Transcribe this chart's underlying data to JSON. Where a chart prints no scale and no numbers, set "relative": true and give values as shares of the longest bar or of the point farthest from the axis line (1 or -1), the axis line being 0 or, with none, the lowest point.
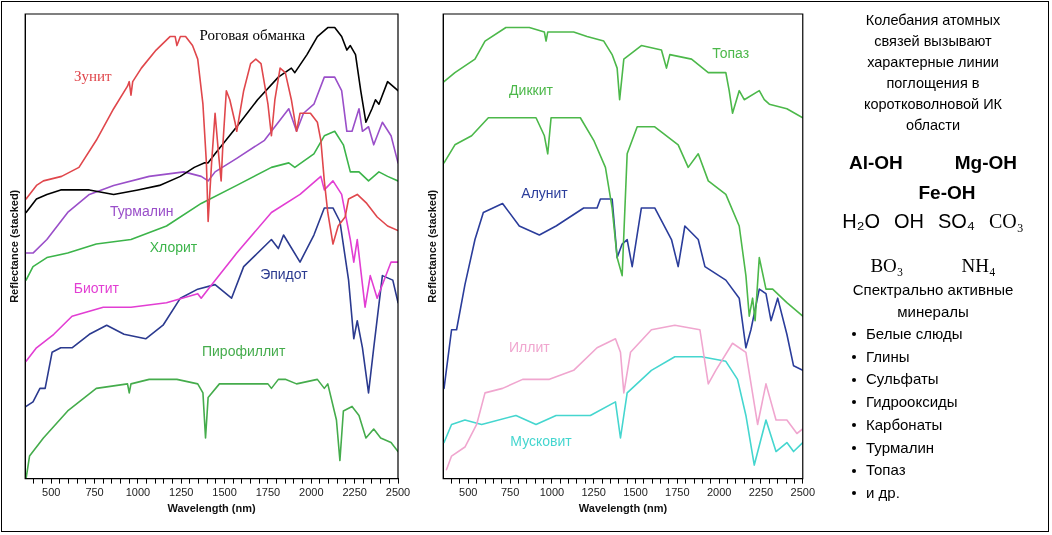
{
  "chart_data": [
    {
      "type": "line",
      "xlabel": "Wavelength (nm)",
      "ylabel": "Reflectance (stacked)",
      "relative": true,
      "marker": "none",
      "xlim": [
        350,
        2500
      ],
      "xticks": [
        {
          "value": 400,
          "label": null
        },
        {
          "value": 450,
          "label": null
        },
        500,
        {
          "value": 550,
          "label": null
        },
        {
          "value": 600,
          "label": null
        },
        {
          "value": 650,
          "label": null
        },
        {
          "value": 700,
          "label": null
        },
        750,
        {
          "value": 800,
          "label": null
        },
        {
          "value": 850,
          "label": null
        },
        {
          "value": 900,
          "label": null
        },
        {
          "value": 950,
          "label": null
        },
        1000,
        {
          "value": 1050,
          "label": null
        },
        {
          "value": 1100,
          "label": null
        },
        {
          "value": 1150,
          "label": null
        },
        {
          "value": 1200,
          "label": null
        },
        1250,
        {
          "value": 1300,
          "label": null
        },
        {
          "value": 1350,
          "label": null
        },
        {
          "value": 1400,
          "label": null
        },
        {
          "value": 1450,
          "label": null
        },
        1500,
        {
          "value": 1550,
          "label": null
        },
        {
          "value": 1600,
          "label": null
        },
        {
          "value": 1650,
          "label": null
        },
        {
          "value": 1700,
          "label": null
        },
        1750,
        {
          "value": 1800,
          "label": null
        },
        {
          "value": 1850,
          "label": null
        },
        {
          "value": 1900,
          "label": null
        },
        {
          "value": 1950,
          "label": null
        },
        2000,
        {
          "value": 2050,
          "label": null
        },
        {
          "value": 2100,
          "label": null
        },
        {
          "value": 2150,
          "label": null
        },
        {
          "value": 2200,
          "label": null
        },
        2250,
        {
          "value": 2300,
          "label": null
        },
        {
          "value": 2350,
          "label": null
        },
        {
          "value": 2400,
          "label": null
        },
        {
          "value": 2450,
          "label": null
        },
        2500
      ],
      "series": [
        {
          "name": "Зунит",
          "color": "#e0474c",
          "x": [
            355,
            415,
            455,
            560,
            660,
            760,
            860,
            940,
            950,
            960,
            970,
            1020,
            1105,
            1185,
            1215,
            1225,
            1245,
            1275,
            1315,
            1345,
            1375,
            1395,
            1405,
            1425,
            1445,
            1465,
            1480,
            1490,
            1510,
            1530,
            1560,
            1570,
            1610,
            1650,
            1680,
            1710,
            1750,
            1770,
            1790,
            1820,
            1850,
            1885,
            1915,
            1935,
            1955,
            1995,
            2035,
            2055,
            2075,
            2095,
            2125,
            2155,
            2175,
            2195,
            2215,
            2265,
            2320,
            2380,
            2440,
            2500
          ],
          "values": [
            0.62,
            0.65,
            0.66,
            0.67,
            0.69,
            0.75,
            0.82,
            0.87,
            0.88,
            0.85,
            0.88,
            0.91,
            0.95,
            0.98,
            0.98,
            0.96,
            0.98,
            0.98,
            0.96,
            0.93,
            0.83,
            0.7,
            0.57,
            0.7,
            0.81,
            0.72,
            0.66,
            0.74,
            0.86,
            0.84,
            0.79,
            0.77,
            0.86,
            0.92,
            0.93,
            0.92,
            0.83,
            0.76,
            0.84,
            0.91,
            0.9,
            0.84,
            0.77,
            0.81,
            0.81,
            0.81,
            0.79,
            0.75,
            0.66,
            0.59,
            0.52,
            0.56,
            0.57,
            0.58,
            0.62,
            0.63,
            0.61,
            0.58,
            0.56,
            0.55
          ]
        },
        {
          "name": "Роговая обманка",
          "color": "#000000",
          "x": [
            355,
            375,
            415,
            475,
            555,
            630,
            720,
            860,
            1000,
            1125,
            1245,
            1325,
            1385,
            1405,
            1445,
            1570,
            1690,
            1810,
            1885,
            1905,
            1975,
            2035,
            2095,
            2135,
            2175,
            2205,
            2225,
            2255,
            2285,
            2315,
            2350,
            2370,
            2390,
            2440,
            2500
          ],
          "values": [
            0.59,
            0.6,
            0.62,
            0.63,
            0.64,
            0.64,
            0.64,
            0.63,
            0.64,
            0.65,
            0.67,
            0.69,
            0.7,
            0.7,
            0.72,
            0.78,
            0.84,
            0.89,
            0.91,
            0.9,
            0.94,
            0.98,
            1.0,
            1.0,
            0.98,
            0.95,
            0.96,
            0.94,
            0.86,
            0.79,
            0.82,
            0.84,
            0.83,
            0.88,
            0.86
          ]
        },
        {
          "name": "Турмалин",
          "color": "#9a4fc9",
          "x": [
            355,
            395,
            475,
            595,
            720,
            860,
            1065,
            1265,
            1365,
            1405,
            1445,
            1570,
            1730,
            1870,
            1915,
            1955,
            2015,
            2075,
            2135,
            2175,
            2205,
            2235,
            2275,
            2295,
            2330,
            2360,
            2410,
            2460,
            2500
          ],
          "values": [
            0.5,
            0.5,
            0.53,
            0.59,
            0.63,
            0.65,
            0.67,
            0.68,
            0.67,
            0.66,
            0.68,
            0.71,
            0.75,
            0.82,
            0.77,
            0.81,
            0.83,
            0.89,
            0.89,
            0.86,
            0.77,
            0.77,
            0.82,
            0.77,
            0.78,
            0.74,
            0.79,
            0.76,
            0.7
          ]
        },
        {
          "name": "Хлорит",
          "color": "#3cb44a",
          "x": [
            355,
            395,
            475,
            595,
            760,
            960,
            1165,
            1365,
            1570,
            1770,
            1870,
            1905,
            2015,
            2075,
            2135,
            2185,
            2225,
            2275,
            2330,
            2390,
            2440,
            2500
          ],
          "values": [
            0.44,
            0.47,
            0.49,
            0.5,
            0.52,
            0.53,
            0.56,
            0.61,
            0.65,
            0.69,
            0.7,
            0.69,
            0.72,
            0.76,
            0.77,
            0.74,
            0.68,
            0.68,
            0.66,
            0.68,
            0.67,
            0.66
          ]
        },
        {
          "name": "Биотит",
          "color": "#e23ed3",
          "x": [
            355,
            415,
            515,
            620,
            800,
            960,
            1165,
            1345,
            1365,
            1405,
            1570,
            1770,
            1935,
            2055,
            2075,
            2125,
            2175,
            2225,
            2245,
            2265,
            2310,
            2340,
            2380,
            2460,
            2500
          ],
          "values": [
            0.26,
            0.29,
            0.32,
            0.36,
            0.38,
            0.38,
            0.39,
            0.41,
            0.4,
            0.42,
            0.5,
            0.59,
            0.63,
            0.67,
            0.64,
            0.66,
            0.63,
            0.53,
            0.48,
            0.53,
            0.38,
            0.45,
            0.4,
            0.48,
            0.48
          ]
        },
        {
          "name": "Эпидот",
          "color": "#2b3a8f",
          "x": [
            355,
            395,
            435,
            465,
            505,
            555,
            620,
            720,
            820,
            920,
            1045,
            1145,
            1245,
            1345,
            1445,
            1540,
            1610,
            1770,
            1810,
            1840,
            1935,
            2015,
            2075,
            2125,
            2165,
            2215,
            2245,
            2265,
            2295,
            2330,
            2360,
            2410,
            2470,
            2500
          ],
          "values": [
            0.16,
            0.17,
            0.2,
            0.2,
            0.28,
            0.29,
            0.29,
            0.32,
            0.34,
            0.32,
            0.31,
            0.34,
            0.4,
            0.42,
            0.43,
            0.4,
            0.47,
            0.53,
            0.51,
            0.54,
            0.48,
            0.54,
            0.6,
            0.6,
            0.57,
            0.44,
            0.31,
            0.35,
            0.29,
            0.19,
            0.29,
            0.45,
            0.44,
            0.39
          ]
        },
        {
          "name": "Пирофиллит",
          "color": "#45ac4c",
          "x": [
            355,
            375,
            455,
            595,
            760,
            940,
            950,
            960,
            1065,
            1225,
            1345,
            1375,
            1390,
            1405,
            1470,
            1610,
            1750,
            1770,
            1810,
            1850,
            1915,
            2035,
            2075,
            2095,
            2145,
            2165,
            2185,
            2235,
            2275,
            2315,
            2360,
            2400,
            2460,
            2500
          ],
          "values": [
            0.0,
            0.05,
            0.09,
            0.15,
            0.2,
            0.21,
            0.19,
            0.21,
            0.22,
            0.22,
            0.21,
            0.19,
            0.09,
            0.18,
            0.21,
            0.21,
            0.21,
            0.2,
            0.22,
            0.22,
            0.21,
            0.22,
            0.2,
            0.21,
            0.13,
            0.04,
            0.15,
            0.16,
            0.14,
            0.09,
            0.11,
            0.09,
            0.08,
            0.06
          ]
        }
      ]
    },
    {
      "type": "line",
      "xlabel": "Wavelength (nm)",
      "ylabel": "Reflectance (stacked)",
      "relative": true,
      "marker": "none",
      "xlim": [
        350,
        2500
      ],
      "xticks": [
        {
          "value": 400,
          "label": null
        },
        {
          "value": 450,
          "label": null
        },
        500,
        {
          "value": 550,
          "label": null
        },
        {
          "value": 600,
          "label": null
        },
        {
          "value": 650,
          "label": null
        },
        {
          "value": 700,
          "label": null
        },
        750,
        {
          "value": 800,
          "label": null
        },
        {
          "value": 850,
          "label": null
        },
        {
          "value": 900,
          "label": null
        },
        {
          "value": 950,
          "label": null
        },
        1000,
        {
          "value": 1050,
          "label": null
        },
        {
          "value": 1100,
          "label": null
        },
        {
          "value": 1150,
          "label": null
        },
        {
          "value": 1200,
          "label": null
        },
        1250,
        {
          "value": 1300,
          "label": null
        },
        {
          "value": 1350,
          "label": null
        },
        {
          "value": 1400,
          "label": null
        },
        {
          "value": 1450,
          "label": null
        },
        1500,
        {
          "value": 1550,
          "label": null
        },
        {
          "value": 1600,
          "label": null
        },
        {
          "value": 1650,
          "label": null
        },
        {
          "value": 1700,
          "label": null
        },
        1750,
        {
          "value": 1800,
          "label": null
        },
        {
          "value": 1850,
          "label": null
        },
        {
          "value": 1900,
          "label": null
        },
        {
          "value": 1950,
          "label": null
        },
        2000,
        {
          "value": 2050,
          "label": null
        },
        {
          "value": 2100,
          "label": null
        },
        {
          "value": 2150,
          "label": null
        },
        {
          "value": 2200,
          "label": null
        },
        2250,
        {
          "value": 2300,
          "label": null
        },
        {
          "value": 2350,
          "label": null
        },
        {
          "value": 2400,
          "label": null
        },
        {
          "value": 2450,
          "label": null
        },
        2500
      ],
      "series": [
        {
          "name": "Топаз",
          "color": "#4cb84a",
          "x": [
            355,
            420,
            540,
            600,
            725,
            865,
            955,
            965,
            975,
            1130,
            1210,
            1310,
            1360,
            1390,
            1405,
            1430,
            1535,
            1655,
            1685,
            1705,
            1835,
            1935,
            2040,
            2060,
            2080,
            2120,
            2150,
            2240,
            2270,
            2300,
            2405,
            2500
          ],
          "values": [
            0.88,
            0.9,
            0.93,
            0.97,
            1.0,
            1.0,
            0.99,
            0.97,
            0.99,
            0.99,
            0.98,
            0.97,
            0.94,
            0.91,
            0.84,
            0.93,
            0.96,
            0.95,
            0.91,
            0.94,
            0.93,
            0.9,
            0.9,
            0.86,
            0.81,
            0.86,
            0.84,
            0.86,
            0.84,
            0.83,
            0.82,
            0.8
          ]
        },
        {
          "name": "Диккит",
          "color": "#4cb84a",
          "x": [
            355,
            420,
            520,
            620,
            745,
            905,
            955,
            975,
            995,
            1170,
            1250,
            1320,
            1360,
            1390,
            1420,
            1450,
            1510,
            1615,
            1755,
            1815,
            1875,
            1935,
            2040,
            2120,
            2160,
            2180,
            2200,
            2215,
            2240,
            2280,
            2320,
            2405,
            2500
          ],
          "values": [
            0.7,
            0.74,
            0.76,
            0.8,
            0.8,
            0.8,
            0.76,
            0.72,
            0.8,
            0.8,
            0.75,
            0.69,
            0.6,
            0.49,
            0.45,
            0.72,
            0.78,
            0.78,
            0.74,
            0.69,
            0.72,
            0.66,
            0.63,
            0.56,
            0.45,
            0.36,
            0.4,
            0.35,
            0.49,
            0.42,
            0.42,
            0.39,
            0.36
          ]
        },
        {
          "name": "Алунит",
          "color": "#2b3d9b",
          "x": [
            355,
            400,
            430,
            480,
            540,
            590,
            705,
            805,
            925,
            1025,
            1190,
            1270,
            1290,
            1360,
            1390,
            1420,
            1450,
            1480,
            1535,
            1615,
            1715,
            1755,
            1795,
            1875,
            1915,
            2040,
            2120,
            2160,
            2190,
            2240,
            2280,
            2310,
            2350,
            2405,
            2445,
            2500
          ],
          "values": [
            0.2,
            0.33,
            0.33,
            0.43,
            0.53,
            0.59,
            0.61,
            0.56,
            0.54,
            0.56,
            0.6,
            0.6,
            0.62,
            0.62,
            0.49,
            0.52,
            0.53,
            0.47,
            0.6,
            0.6,
            0.53,
            0.47,
            0.56,
            0.53,
            0.47,
            0.44,
            0.4,
            0.29,
            0.33,
            0.42,
            0.41,
            0.35,
            0.4,
            0.32,
            0.25,
            0.24
          ]
        },
        {
          "name": "Иллит",
          "color": "#f0a6cf",
          "x": [
            370,
            400,
            480,
            550,
            600,
            705,
            825,
            985,
            1130,
            1270,
            1380,
            1410,
            1430,
            1470,
            1595,
            1735,
            1885,
            1935,
            1980,
            2080,
            2160,
            2230,
            2280,
            2340,
            2405,
            2465,
            2500
          ],
          "values": [
            0.02,
            0.05,
            0.07,
            0.12,
            0.19,
            0.2,
            0.22,
            0.22,
            0.24,
            0.29,
            0.31,
            0.28,
            0.19,
            0.28,
            0.33,
            0.34,
            0.33,
            0.21,
            0.24,
            0.3,
            0.28,
            0.12,
            0.21,
            0.13,
            0.13,
            0.1,
            0.11
          ]
        },
        {
          "name": "Мусковит",
          "color": "#45d6cf",
          "x": [
            355,
            400,
            480,
            580,
            785,
            905,
            1025,
            1230,
            1380,
            1410,
            1450,
            1595,
            1735,
            1895,
            2040,
            2110,
            2160,
            2210,
            2280,
            2340,
            2405,
            2445,
            2500
          ],
          "values": [
            0.08,
            0.12,
            0.13,
            0.12,
            0.14,
            0.12,
            0.14,
            0.14,
            0.17,
            0.09,
            0.19,
            0.24,
            0.27,
            0.27,
            0.26,
            0.22,
            0.14,
            0.03,
            0.13,
            0.06,
            0.08,
            0.06,
            0.08
          ]
        }
      ]
    },
    {
      "type": "other",
      "title": "Колебания атомных связей вызывают характерные линии поглощения в коротковолновой ИК области",
      "annotations": [
        "Al-OH",
        "Mg-OH",
        "Fe-OH",
        "H₂O",
        "OH",
        "SO₄",
        "CO₃",
        "BO₃",
        "NH₄",
        "Спектрально активные минералы",
        "Белые слюды",
        "Глины",
        "Сульфаты",
        "Гидрооксиды",
        "Карбонаты",
        "Турмалин",
        "Топаз",
        "и др."
      ]
    }
  ]
}
